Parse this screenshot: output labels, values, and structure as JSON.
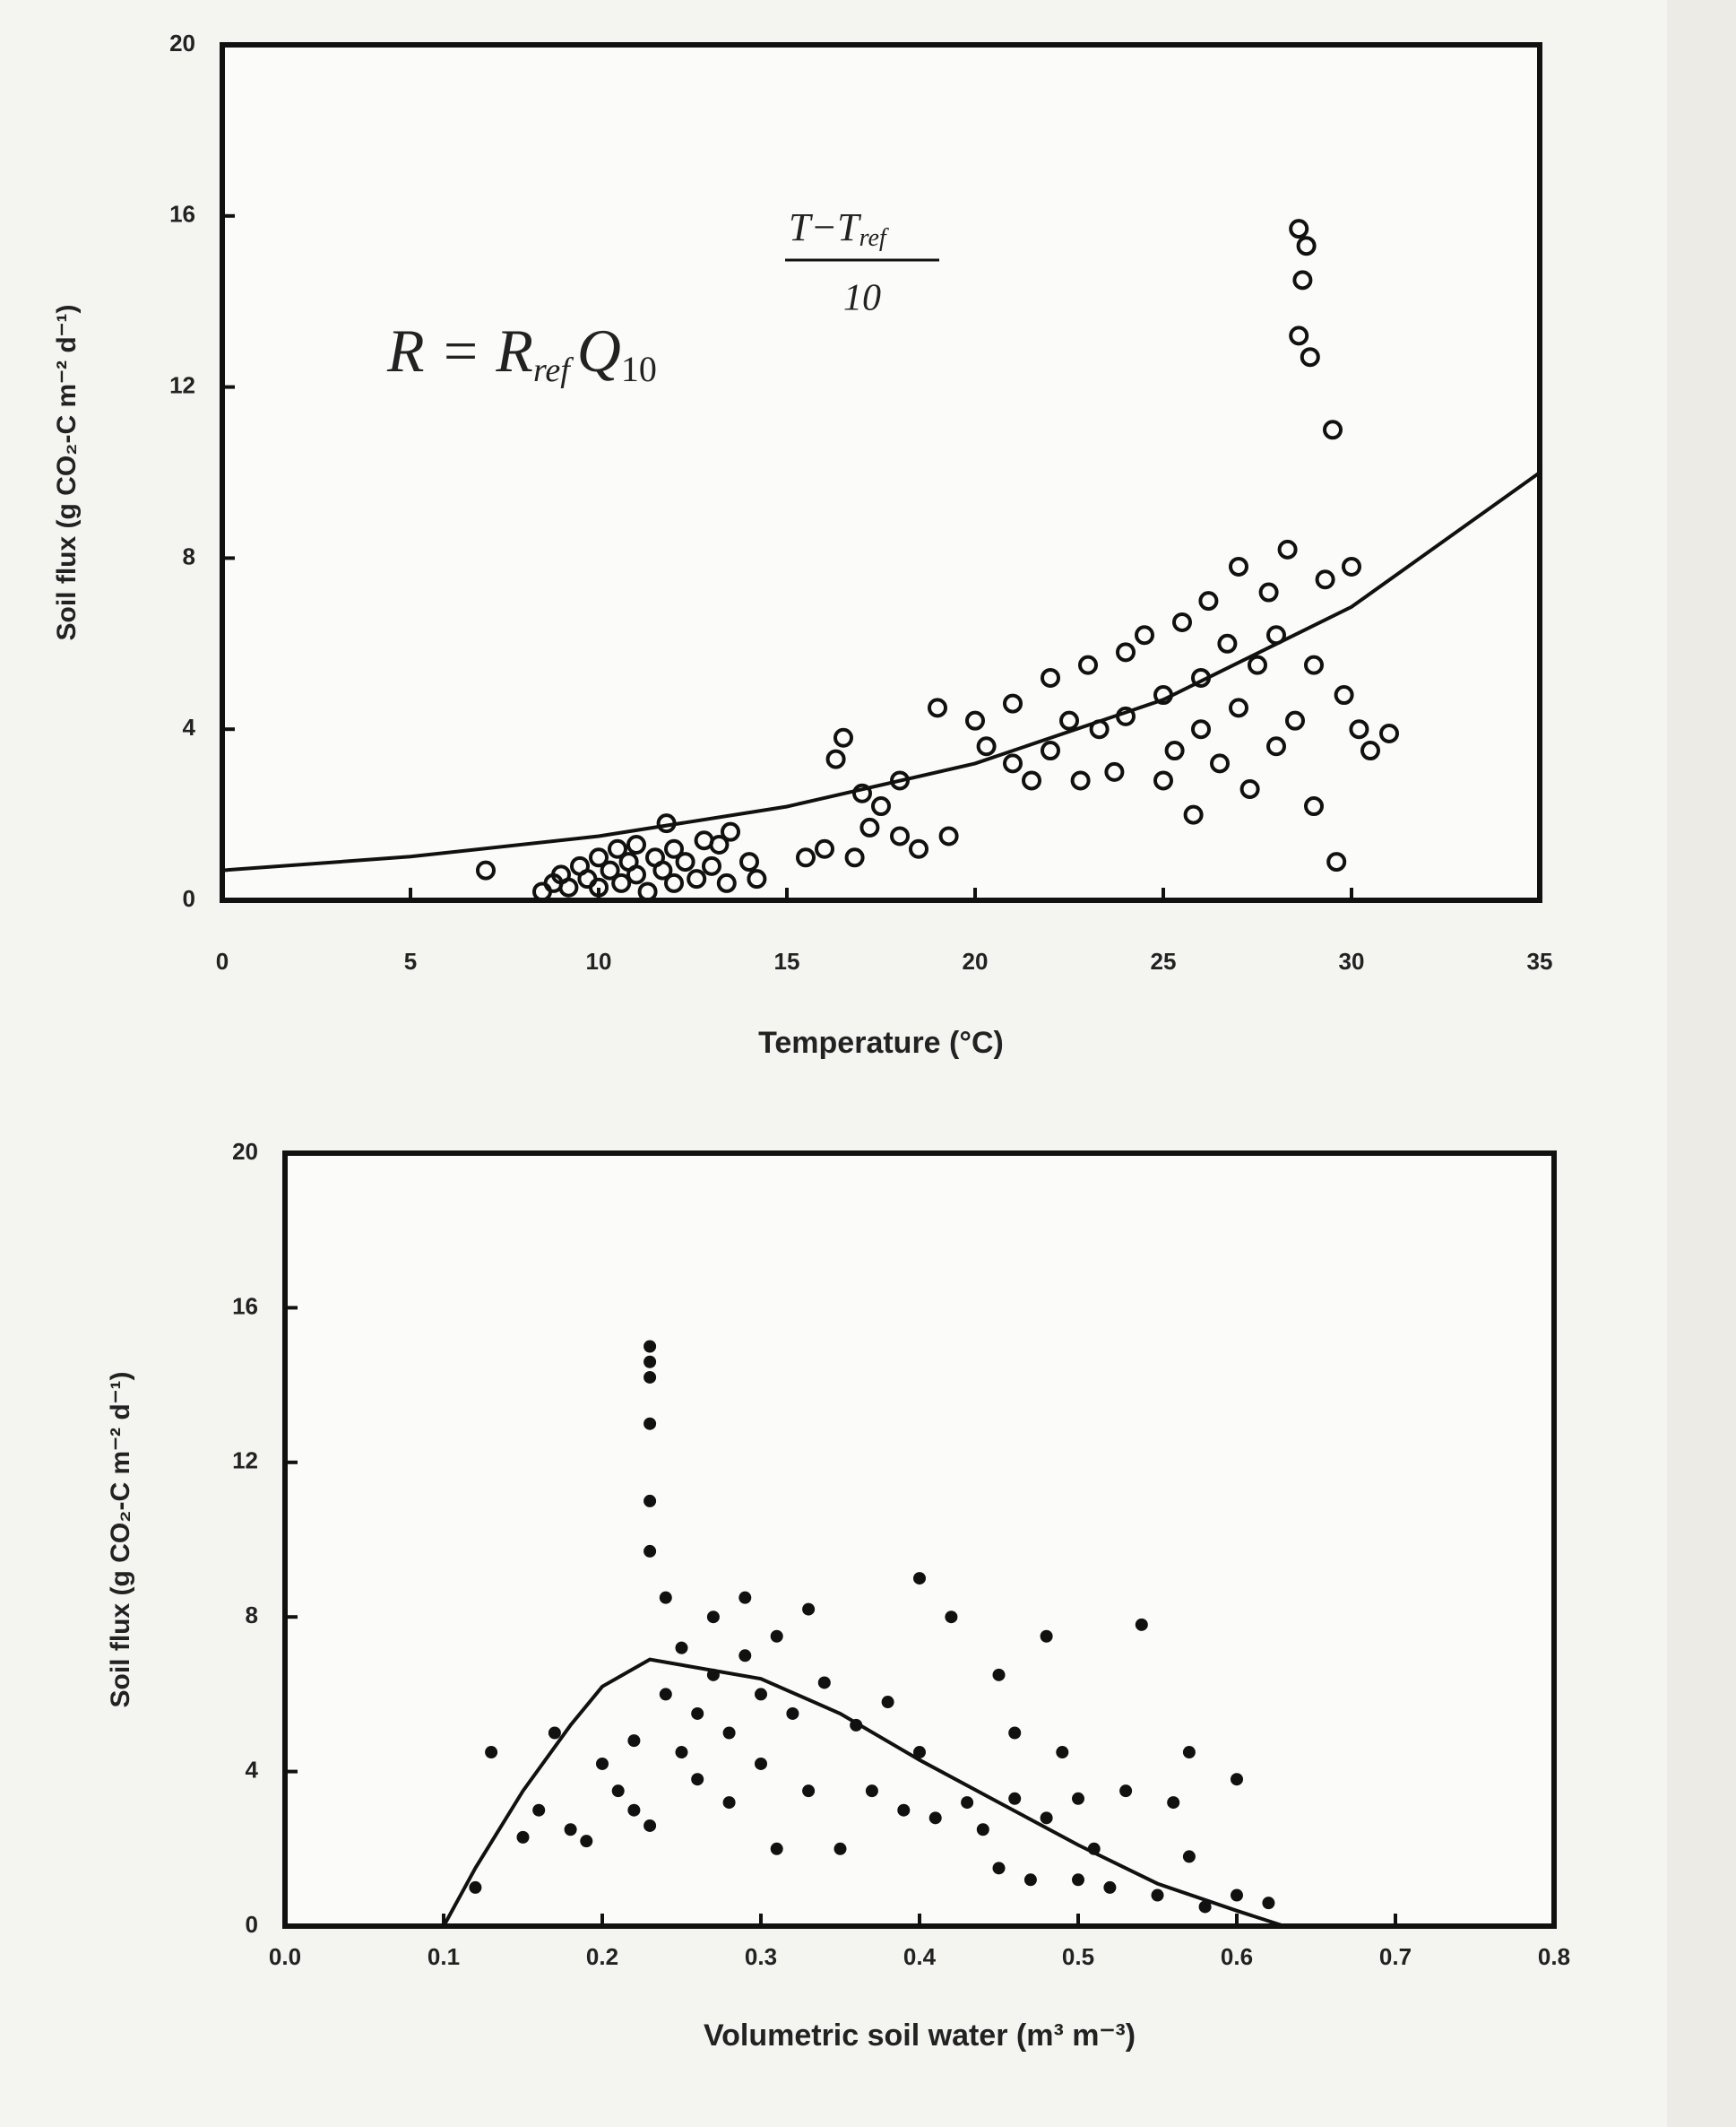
{
  "chart_data": [
    {
      "type": "scatter",
      "marker": "open",
      "color": "#111111",
      "x_label": "Temperature (°C)",
      "y_label": "Soil flux (g CO₂-C m⁻² d⁻¹)",
      "equation": {
        "lhs": "R = R",
        "lhs_sub": "ref",
        "q": "Q",
        "q_sub": "10",
        "numerator": "T−T",
        "numerator_sub": "ref",
        "denominator": "10"
      },
      "xlim": [
        0,
        35
      ],
      "ylim": [
        0,
        20
      ],
      "xticks": [
        0,
        5,
        10,
        15,
        20,
        25,
        30,
        35
      ],
      "yticks": [
        0,
        4,
        8,
        12,
        16,
        20
      ],
      "x": [
        7,
        8.5,
        8.8,
        9,
        9.2,
        9.5,
        9.7,
        10,
        10,
        10.3,
        10.5,
        10.6,
        10.8,
        11,
        11,
        11.3,
        11.5,
        11.7,
        11.8,
        12,
        12,
        12.3,
        12.6,
        12.8,
        13,
        13.2,
        13.4,
        13.5,
        14,
        14.2,
        15.5,
        16,
        16.3,
        16.5,
        16.8,
        17,
        17.2,
        17.5,
        18,
        18,
        18.5,
        19,
        19.3,
        20,
        20.3,
        21,
        21,
        21.5,
        22,
        22,
        22.5,
        22.8,
        23,
        23.3,
        23.7,
        24,
        24,
        24.5,
        25,
        25,
        25.3,
        25.5,
        25.8,
        26,
        26,
        26.2,
        26.5,
        26.7,
        27,
        27,
        27.3,
        27.5,
        27.8,
        28,
        28,
        28.3,
        28.5,
        28.6,
        28.8,
        28.7,
        28.6,
        28.9,
        29,
        29,
        29.3,
        29.5,
        29.6,
        29.8,
        30,
        30.2,
        30.5,
        31
      ],
      "values": [
        0.7,
        0.2,
        0.4,
        0.6,
        0.3,
        0.8,
        0.5,
        1,
        0.3,
        0.7,
        1.2,
        0.4,
        0.9,
        0.6,
        1.3,
        0.2,
        1,
        0.7,
        1.8,
        0.4,
        1.2,
        0.9,
        0.5,
        1.4,
        0.8,
        1.3,
        0.4,
        1.6,
        0.9,
        0.5,
        1,
        1.2,
        3.3,
        3.8,
        1,
        2.5,
        1.7,
        2.2,
        1.5,
        2.8,
        1.2,
        4.5,
        1.5,
        4.2,
        3.6,
        3.2,
        4.6,
        2.8,
        5.2,
        3.5,
        4.2,
        2.8,
        5.5,
        4,
        3,
        5.8,
        4.3,
        6.2,
        4.8,
        2.8,
        3.5,
        6.5,
        2,
        5.2,
        4,
        7,
        3.2,
        6,
        7.8,
        4.5,
        2.6,
        5.5,
        7.2,
        3.6,
        6.2,
        8.2,
        4.2,
        15.7,
        15.3,
        14.5,
        13.2,
        12.7,
        2.2,
        5.5,
        7.5,
        11,
        0.9,
        4.8,
        7.8,
        4,
        3.5,
        3.9
      ],
      "fit": {
        "x": [
          0,
          5,
          10,
          15,
          20,
          25,
          30,
          35
        ],
        "values": [
          0.7,
          1.02,
          1.5,
          2.19,
          3.2,
          4.69,
          6.86,
          10
        ]
      }
    },
    {
      "type": "scatter",
      "marker": "filled",
      "color": "#111111",
      "x_label": "Volumetric soil water (m³ m⁻³)",
      "y_label": "Soil flux (g CO₂-C m⁻² d⁻¹)",
      "xlim": [
        0,
        0.8
      ],
      "ylim": [
        0,
        20
      ],
      "xticks": [
        {
          "value": 0,
          "label": "0.0"
        },
        0.1,
        0.2,
        0.3,
        0.4,
        0.5,
        0.6,
        0.7,
        0.8
      ],
      "yticks": [
        0,
        4,
        8,
        12,
        16,
        20
      ],
      "x": [
        0.12,
        0.13,
        0.15,
        0.16,
        0.17,
        0.18,
        0.19,
        0.2,
        0.21,
        0.22,
        0.22,
        0.23,
        0.23,
        0.23,
        0.23,
        0.23,
        0.23,
        0.23,
        0.24,
        0.24,
        0.25,
        0.25,
        0.26,
        0.26,
        0.27,
        0.27,
        0.28,
        0.28,
        0.29,
        0.29,
        0.3,
        0.3,
        0.31,
        0.31,
        0.32,
        0.33,
        0.33,
        0.34,
        0.35,
        0.36,
        0.37,
        0.38,
        0.39,
        0.4,
        0.4,
        0.41,
        0.42,
        0.43,
        0.44,
        0.45,
        0.45,
        0.46,
        0.46,
        0.47,
        0.48,
        0.48,
        0.49,
        0.5,
        0.5,
        0.51,
        0.52,
        0.53,
        0.54,
        0.55,
        0.56,
        0.57,
        0.57,
        0.58,
        0.6,
        0.6,
        0.62
      ],
      "values": [
        1,
        4.5,
        2.3,
        3,
        5,
        2.5,
        2.2,
        4.2,
        3.5,
        4.8,
        3,
        2.6,
        15,
        14.6,
        14.2,
        13,
        11,
        9.7,
        8.5,
        6,
        4.5,
        7.2,
        5.5,
        3.8,
        6.5,
        8,
        5,
        3.2,
        7,
        8.5,
        6,
        4.2,
        2,
        7.5,
        5.5,
        8.2,
        3.5,
        6.3,
        2,
        5.2,
        3.5,
        5.8,
        3,
        9,
        4.5,
        2.8,
        8,
        3.2,
        2.5,
        6.5,
        1.5,
        5,
        3.3,
        1.2,
        7.5,
        2.8,
        4.5,
        1.2,
        3.3,
        2,
        1,
        3.5,
        7.8,
        0.8,
        3.2,
        4.5,
        1.8,
        0.5,
        0.8,
        3.8,
        0.6
      ],
      "fit": {
        "x": [
          0.1,
          0.12,
          0.15,
          0.18,
          0.2,
          0.23,
          0.3,
          0.35,
          0.4,
          0.45,
          0.5,
          0.55,
          0.6,
          0.63
        ],
        "values": [
          0,
          1.5,
          3.5,
          5.2,
          6.2,
          6.9,
          6.4,
          5.5,
          4.3,
          3.2,
          2.1,
          1.1,
          0.4,
          0
        ]
      }
    }
  ]
}
